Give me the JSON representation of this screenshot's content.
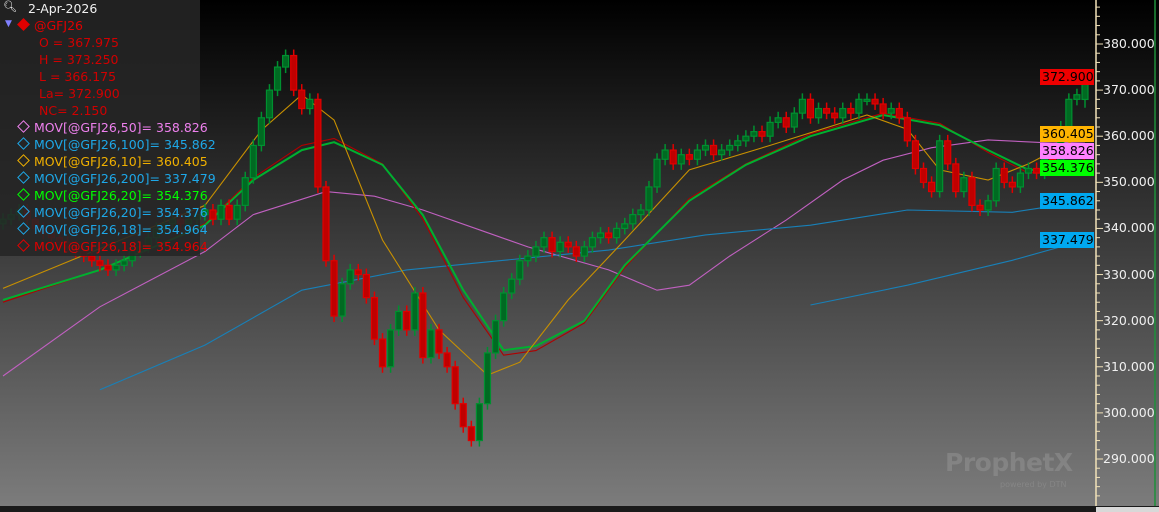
{
  "legend": {
    "date": "2-Apr-2026",
    "symbol": "@GFJ26",
    "open": "O = 367.975",
    "high": "H = 373.250",
    "low": "L = 366.175",
    "last": "La= 372.900",
    "net_change": "NC= 2.150",
    "studies": [
      {
        "label": "MOV[@GFJ26,50]= 358.826",
        "color": "#ee80ee"
      },
      {
        "label": "MOV[@GFJ26,100]= 345.862",
        "color": "#1ea8e8"
      },
      {
        "label": "MOV[@GFJ26,10]= 360.405",
        "color": "#f0b000"
      },
      {
        "label": "MOV[@GFJ26,200]= 337.479",
        "color": "#1ea8e8"
      },
      {
        "label": "MOV[@GFJ26,20]= 354.376",
        "color": "#00ff00"
      },
      {
        "label": "MOV[@GFJ26,20]= 354.376",
        "color": "#1ea8e8"
      },
      {
        "label": "MOV[@GFJ26,18]= 354.964",
        "color": "#1ea8e8"
      },
      {
        "label": "MOV[@GFJ26,18]= 354.964",
        "color": "#e00000"
      }
    ]
  },
  "price_tags": [
    {
      "value": 360.405,
      "label": "360.405",
      "color": "#ffb400"
    },
    {
      "value": 358.826,
      "label": "358.826",
      "color": "#ff80ff"
    },
    {
      "value": 354.376,
      "label": "354.376",
      "color": "#00ff00"
    },
    {
      "value": 345.862,
      "label": "345.862",
      "color": "#00a8f0"
    },
    {
      "value": 337.479,
      "label": "337.479",
      "color": "#00a8f0"
    },
    {
      "value": 372.9,
      "label": "372.900",
      "color": "#ee0000"
    }
  ],
  "logo": {
    "name": "ProphetX",
    "sub": "powered by DTN"
  },
  "chart_data": {
    "type": "candlestick",
    "symbol": "@GFJ26",
    "ylim": [
      280,
      390
    ],
    "yticks": [
      "290.000",
      "300.000",
      "310.000",
      "320.000",
      "330.000",
      "340.000",
      "350.000",
      "360.000",
      "370.000",
      "380.000"
    ],
    "ytick_values": [
      290,
      300,
      310,
      320,
      330,
      340,
      350,
      360,
      370,
      380
    ],
    "up_color": "#009030",
    "down_color": "#e00000",
    "closes": [
      342,
      343,
      344,
      342,
      340,
      339,
      338,
      337,
      336,
      335,
      334,
      333,
      332,
      331,
      332,
      333,
      335,
      336,
      338,
      340,
      341,
      342,
      341,
      342,
      343,
      344,
      342,
      345,
      342,
      345,
      351,
      358,
      364,
      370,
      375,
      377.5,
      370,
      366,
      368,
      349,
      333,
      321,
      328,
      331,
      330,
      325,
      316,
      310,
      318,
      322,
      318,
      326,
      312,
      318,
      313,
      310,
      302,
      297,
      294,
      302,
      313,
      320,
      326,
      329,
      333,
      334,
      336,
      338,
      335,
      337,
      336,
      334,
      336,
      338,
      339,
      338,
      340,
      341,
      343,
      344,
      349,
      355,
      357,
      354,
      356,
      355,
      357,
      358,
      356,
      357,
      358,
      359,
      360,
      361,
      360,
      363,
      364,
      362,
      365,
      368,
      364,
      366,
      365,
      364,
      366,
      365,
      368,
      368,
      367,
      365,
      366,
      364,
      359,
      353,
      350,
      348,
      359,
      354,
      348,
      351,
      345,
      344,
      346,
      353,
      350,
      349,
      352,
      353,
      352,
      355,
      354,
      362,
      368,
      369,
      372.9
    ],
    "last_bar": {
      "open": 367.975,
      "high": 373.25,
      "low": 366.175,
      "close": 372.9
    },
    "moving_averages": [
      {
        "name": "MOV[@GFJ26,50]",
        "color": "#c060c0",
        "points": [
          [
            0,
            308
          ],
          [
            12,
            323
          ],
          [
            25,
            335
          ],
          [
            31,
            343
          ],
          [
            40,
            348
          ],
          [
            46,
            347
          ],
          [
            52,
            344
          ],
          [
            59,
            339.7
          ],
          [
            65,
            336
          ],
          [
            75,
            331
          ],
          [
            81,
            326.6
          ],
          [
            85,
            327.7
          ],
          [
            90,
            334
          ],
          [
            97,
            341.8
          ],
          [
            104,
            350.5
          ],
          [
            109,
            354.8
          ],
          [
            115,
            357.5
          ],
          [
            122,
            359.2
          ],
          [
            130,
            358.5
          ],
          [
            134,
            358.8
          ]
        ]
      },
      {
        "name": "MOV[@GFJ26,100]",
        "color": "#1880b8",
        "points": [
          [
            12,
            305
          ],
          [
            25,
            314.7
          ],
          [
            37,
            326.6
          ],
          [
            50,
            331
          ],
          [
            62,
            333.1
          ],
          [
            75,
            335.3
          ],
          [
            87,
            338.6
          ],
          [
            100,
            340.7
          ],
          [
            112,
            344
          ],
          [
            125,
            343.5
          ],
          [
            134,
            345.9
          ]
        ]
      },
      {
        "name": "MOV[@GFJ26,200]",
        "color": "#1880b8",
        "points": [
          [
            100,
            323.4
          ],
          [
            112,
            327.7
          ],
          [
            125,
            333.1
          ],
          [
            134,
            337.5
          ]
        ]
      },
      {
        "name": "MOV[@GFJ26,18]",
        "color": "#b00000",
        "points": [
          [
            0,
            324
          ],
          [
            12,
            331
          ],
          [
            25,
            341
          ],
          [
            31,
            351
          ],
          [
            37,
            358
          ],
          [
            41,
            359.5
          ],
          [
            47,
            354
          ],
          [
            52,
            342
          ],
          [
            57,
            325
          ],
          [
            62,
            312.5
          ],
          [
            66,
            313.5
          ],
          [
            72,
            319.5
          ],
          [
            77,
            331.5
          ],
          [
            85,
            346.5
          ],
          [
            92,
            354
          ],
          [
            100,
            360.5
          ],
          [
            109,
            365
          ],
          [
            116,
            362.8
          ],
          [
            122,
            356.5
          ],
          [
            127,
            352
          ],
          [
            131,
            352.5
          ],
          [
            134,
            355
          ]
        ]
      },
      {
        "name": "MOV[@GFJ26,20]",
        "color": "#00b030",
        "points": [
          [
            0,
            324.5
          ],
          [
            12,
            331
          ],
          [
            25,
            340.7
          ],
          [
            31,
            350.5
          ],
          [
            37,
            357
          ],
          [
            41,
            358.7
          ],
          [
            47,
            353.8
          ],
          [
            52,
            342.9
          ],
          [
            57,
            326.6
          ],
          [
            62,
            313.6
          ],
          [
            66,
            314.5
          ],
          [
            72,
            320
          ],
          [
            77,
            332
          ],
          [
            85,
            346
          ],
          [
            92,
            353.8
          ],
          [
            100,
            360
          ],
          [
            109,
            364.6
          ],
          [
            116,
            362.4
          ],
          [
            122,
            357
          ],
          [
            127,
            352.7
          ],
          [
            131,
            352.8
          ],
          [
            134,
            354.4
          ]
        ]
      },
      {
        "name": "MOV[@GFJ26,10]",
        "color": "#c89000",
        "points": [
          [
            0,
            327
          ],
          [
            25,
            345
          ],
          [
            32,
            361.3
          ],
          [
            37,
            369
          ],
          [
            41,
            363.5
          ],
          [
            47,
            337.5
          ],
          [
            54,
            318
          ],
          [
            60,
            308.2
          ],
          [
            64,
            311
          ],
          [
            70,
            324.5
          ],
          [
            77,
            337.5
          ],
          [
            85,
            352.7
          ],
          [
            95,
            358
          ],
          [
            107,
            364.6
          ],
          [
            112,
            361.5
          ],
          [
            116,
            352.7
          ],
          [
            122,
            350.5
          ],
          [
            127,
            354
          ],
          [
            134,
            360.4
          ]
        ]
      }
    ]
  }
}
